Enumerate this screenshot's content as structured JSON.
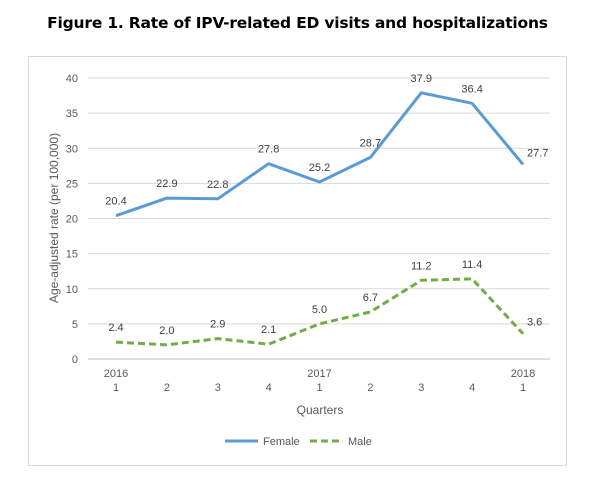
{
  "title": "Figure 1. Rate of IPV-related ED visits and hospitalizations",
  "chart_data": {
    "type": "line",
    "xlabel": "Quarters",
    "ylabel": "Age-adjusted rate (per 100,000)",
    "ylim": [
      0,
      40
    ],
    "yticks": [
      0,
      5,
      10,
      15,
      20,
      25,
      30,
      35,
      40
    ],
    "grid": true,
    "legend_position": "bottom",
    "categories": [
      {
        "year": "2016",
        "quarter": "1"
      },
      {
        "year": "",
        "quarter": "2"
      },
      {
        "year": "",
        "quarter": "3"
      },
      {
        "year": "",
        "quarter": "4"
      },
      {
        "year": "2017",
        "quarter": "1"
      },
      {
        "year": "",
        "quarter": "2"
      },
      {
        "year": "",
        "quarter": "3"
      },
      {
        "year": "",
        "quarter": "4"
      },
      {
        "year": "2018",
        "quarter": "1"
      }
    ],
    "series": [
      {
        "name": "Female",
        "color": "#5b9bd5",
        "dash": "solid",
        "values": [
          20.4,
          22.9,
          22.8,
          27.8,
          25.2,
          28.7,
          37.9,
          36.4,
          27.7
        ],
        "labels": [
          "20.4",
          "22.9",
          "22.8",
          "27.8",
          "25.2",
          "28.7",
          "37.9",
          "36.4",
          "27.7"
        ]
      },
      {
        "name": "Male",
        "color": "#70ad47",
        "dash": "dashed",
        "values": [
          2.4,
          2.0,
          2.9,
          2.1,
          5.0,
          6.7,
          11.2,
          11.4,
          3.6
        ],
        "labels": [
          "2.4",
          "2.0",
          "2.9",
          "2.1",
          "5.0",
          "6.7",
          "11.2",
          "11.4",
          "3.6"
        ]
      }
    ]
  }
}
